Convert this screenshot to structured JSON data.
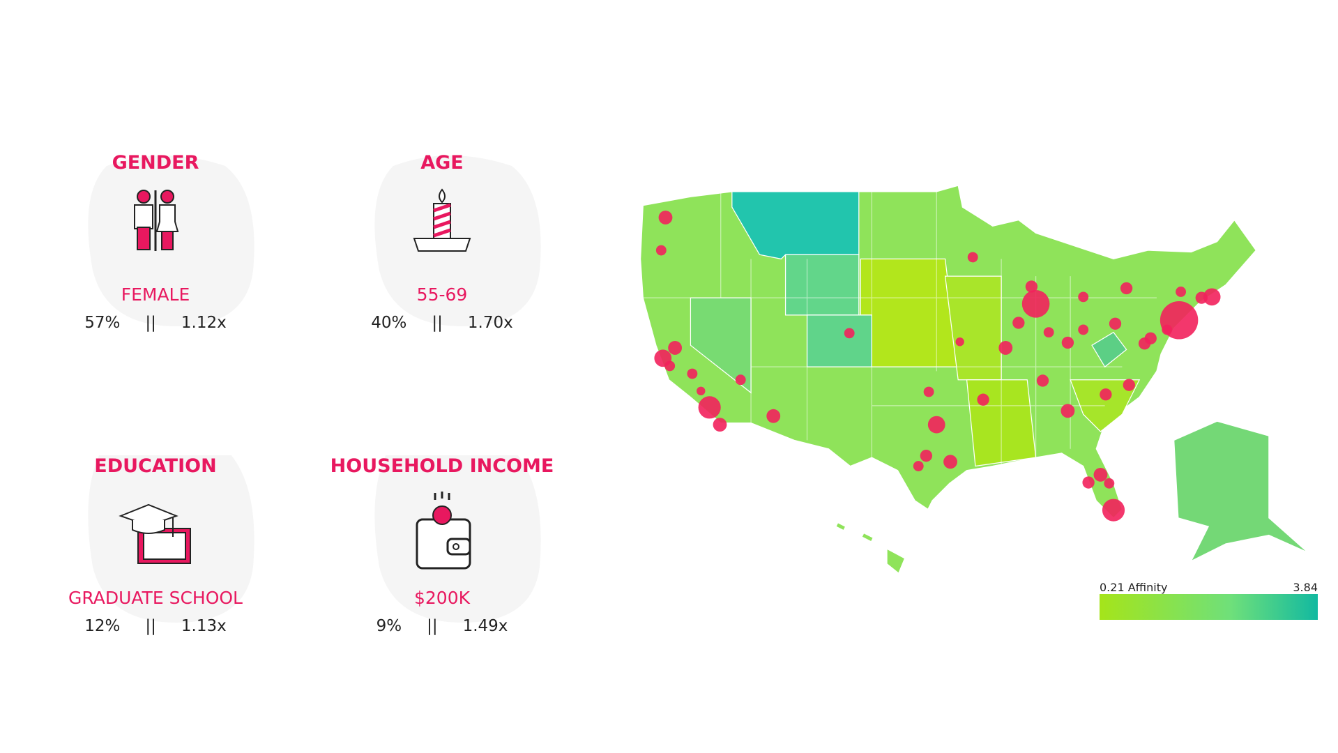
{
  "cards": [
    {
      "title": "GENDER",
      "label": "FEMALE",
      "share": "57%",
      "separator": "||",
      "affinity": "1.12x"
    },
    {
      "title": "AGE",
      "label": "55-69",
      "share": "40%",
      "separator": "||",
      "affinity": "1.70x"
    },
    {
      "title": "EDUCATION",
      "label": "GRADUATE SCHOOL",
      "share": "12%",
      "separator": "||",
      "affinity": "1.13x"
    },
    {
      "title": "HOUSEHOLD INCOME",
      "label": "$200K",
      "share": "9%",
      "separator": "||",
      "affinity": "1.49x"
    }
  ],
  "legend": {
    "min_label": "0.21 Affinity",
    "max_label": "3.84"
  }
}
